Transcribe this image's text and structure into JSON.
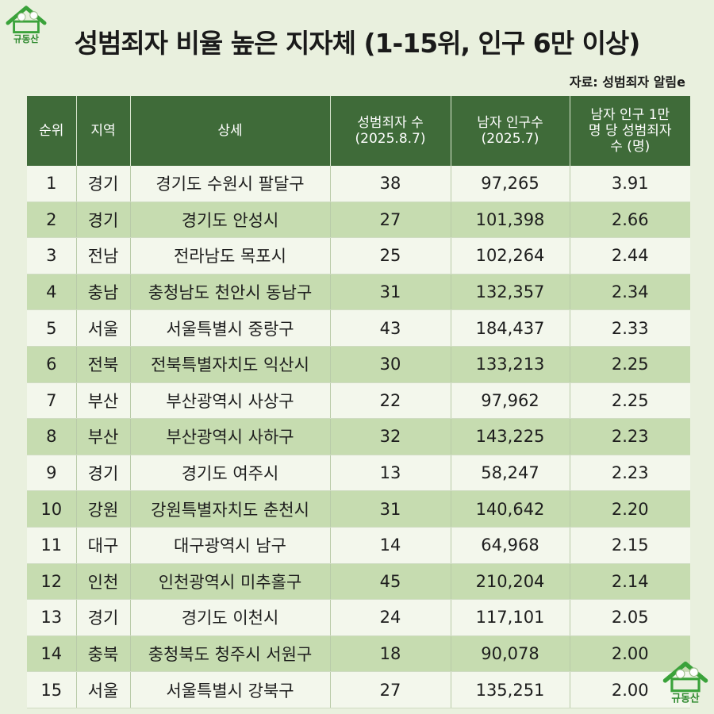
{
  "title": "성범죄자 비율 높은 지자체 (1-15위, 인구 6만 이상)",
  "source": "자료: 성범죄자 알림e",
  "logo_text": "규동산",
  "table": {
    "headers": {
      "rank": "순위",
      "region": "지역",
      "detail": "상세",
      "count_line1": "성범죄자 수",
      "count_line2": "(2025.8.7)",
      "pop_line1": "남자 인구수",
      "pop_line2": "(2025.7)",
      "rate_line1": "남자 인구 1만",
      "rate_line2": "명 당 성범죄자",
      "rate_line3": "수 (명)"
    },
    "rows": [
      {
        "rank": "1",
        "region": "경기",
        "detail": "경기도 수원시 팔달구",
        "count": "38",
        "population": "97,265",
        "rate": "3.91"
      },
      {
        "rank": "2",
        "region": "경기",
        "detail": "경기도 안성시",
        "count": "27",
        "population": "101,398",
        "rate": "2.66"
      },
      {
        "rank": "3",
        "region": "전남",
        "detail": "전라남도 목포시",
        "count": "25",
        "population": "102,264",
        "rate": "2.44"
      },
      {
        "rank": "4",
        "region": "충남",
        "detail": "충청남도 천안시 동남구",
        "count": "31",
        "population": "132,357",
        "rate": "2.34"
      },
      {
        "rank": "5",
        "region": "서울",
        "detail": "서울특별시 중랑구",
        "count": "43",
        "population": "184,437",
        "rate": "2.33"
      },
      {
        "rank": "6",
        "region": "전북",
        "detail": "전북특별자치도 익산시",
        "count": "30",
        "population": "133,213",
        "rate": "2.25"
      },
      {
        "rank": "7",
        "region": "부산",
        "detail": "부산광역시 사상구",
        "count": "22",
        "population": "97,962",
        "rate": "2.25"
      },
      {
        "rank": "8",
        "region": "부산",
        "detail": "부산광역시 사하구",
        "count": "32",
        "population": "143,225",
        "rate": "2.23"
      },
      {
        "rank": "9",
        "region": "경기",
        "detail": "경기도 여주시",
        "count": "13",
        "population": "58,247",
        "rate": "2.23"
      },
      {
        "rank": "10",
        "region": "강원",
        "detail": "강원특별자치도 춘천시",
        "count": "31",
        "population": "140,642",
        "rate": "2.20"
      },
      {
        "rank": "11",
        "region": "대구",
        "detail": "대구광역시 남구",
        "count": "14",
        "population": "64,968",
        "rate": "2.15"
      },
      {
        "rank": "12",
        "region": "인천",
        "detail": "인천광역시 미추홀구",
        "count": "45",
        "population": "210,204",
        "rate": "2.14"
      },
      {
        "rank": "13",
        "region": "경기",
        "detail": "경기도 이천시",
        "count": "24",
        "population": "117,101",
        "rate": "2.05"
      },
      {
        "rank": "14",
        "region": "충북",
        "detail": "충청북도 청주시 서원구",
        "count": "18",
        "population": "90,078",
        "rate": "2.00"
      },
      {
        "rank": "15",
        "region": "서울",
        "detail": "서울특별시 강북구",
        "count": "27",
        "population": "135,251",
        "rate": "2.00"
      }
    ]
  },
  "colors": {
    "background": "#e9f0de",
    "header": "#3f6b39",
    "row_light": "#f3f7ec",
    "row_green": "#c6dcb0",
    "logo_green": "#3aa23a"
  }
}
